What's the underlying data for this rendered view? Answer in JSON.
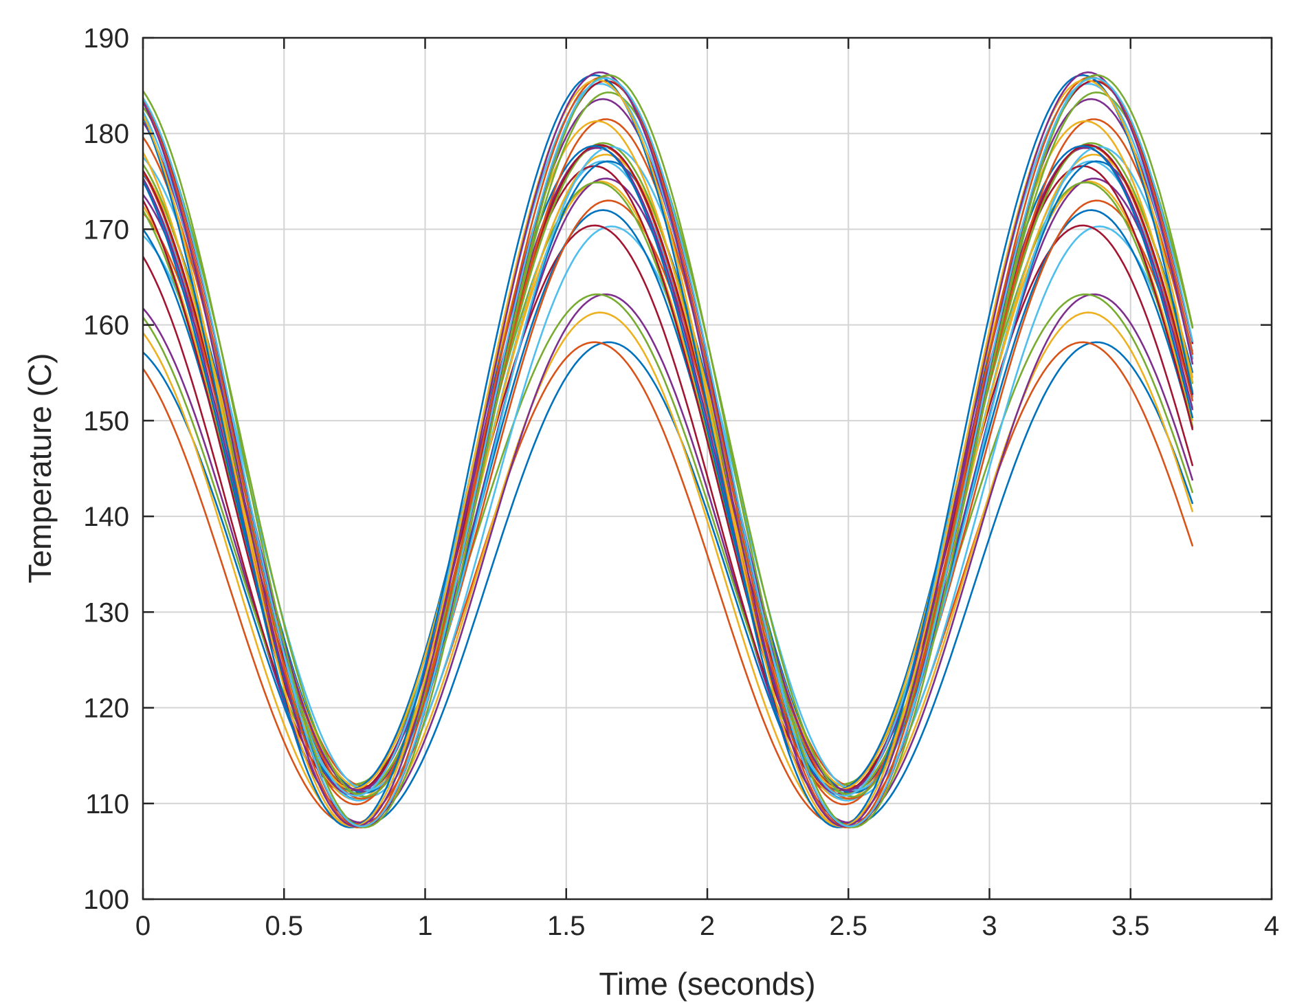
{
  "chart_data": {
    "type": "line",
    "xlabel": "Time (seconds)",
    "ylabel": "Temperature (C)",
    "xlim": [
      0,
      4
    ],
    "ylim": [
      100,
      190
    ],
    "xticks": [
      0,
      0.5,
      1,
      1.5,
      2,
      2.5,
      3,
      3.5,
      4
    ],
    "xtick_labels": [
      "0",
      "0.5",
      "1",
      "1.5",
      "2",
      "2.5",
      "3",
      "3.5",
      "4"
    ],
    "yticks": [
      100,
      110,
      120,
      130,
      140,
      150,
      160,
      170,
      180,
      190
    ],
    "ytick_labels": [
      "100",
      "110",
      "120",
      "130",
      "140",
      "150",
      "160",
      "170",
      "180",
      "190"
    ],
    "grid": true,
    "x_end": 3.72,
    "period": 1.73,
    "series_colors": [
      "#0072BD",
      "#D95319",
      "#EDB120",
      "#7E2F8E",
      "#77AC30",
      "#4DBEEE",
      "#A2142F"
    ],
    "series": [
      {
        "mean": 133.0,
        "amplitude": 25.2,
        "phase": 0.05
      },
      {
        "mean": 133.0,
        "amplitude": 25.2,
        "phase": 0.0
      },
      {
        "mean": 134.4,
        "amplitude": 26.9,
        "phase": 0.02
      },
      {
        "mean": 135.6,
        "amplitude": 27.6,
        "phase": 0.04
      },
      {
        "mean": 137.6,
        "amplitude": 25.6,
        "phase": 0.01
      },
      {
        "mean": 140.5,
        "amplitude": 29.8,
        "phase": 0.06
      },
      {
        "mean": 140.7,
        "amplitude": 29.7,
        "phase": 0.0
      },
      {
        "mean": 141.2,
        "amplitude": 30.8,
        "phase": 0.03
      },
      {
        "mean": 142.4,
        "amplitude": 30.6,
        "phase": 0.05
      },
      {
        "mean": 142.7,
        "amplitude": 32.3,
        "phase": 0.02
      },
      {
        "mean": 143.3,
        "amplitude": 32.0,
        "phase": 0.04
      },
      {
        "mean": 143.4,
        "amplitude": 31.5,
        "phase": 0.01
      },
      {
        "mean": 143.7,
        "amplitude": 33.4,
        "phase": 0.03
      },
      {
        "mean": 144.0,
        "amplitude": 32.6,
        "phase": 0.0
      },
      {
        "mean": 144.1,
        "amplitude": 33.0,
        "phase": 0.05
      },
      {
        "mean": 144.3,
        "amplitude": 34.4,
        "phase": 0.02
      },
      {
        "mean": 144.7,
        "amplitude": 33.1,
        "phase": 0.04
      },
      {
        "mean": 144.7,
        "amplitude": 33.8,
        "phase": 0.01
      },
      {
        "mean": 145.0,
        "amplitude": 34.0,
        "phase": 0.03
      },
      {
        "mean": 145.0,
        "amplitude": 33.6,
        "phase": 0.06
      },
      {
        "mean": 145.1,
        "amplitude": 33.7,
        "phase": 0.02
      },
      {
        "mean": 145.1,
        "amplitude": 33.6,
        "phase": 0.0
      },
      {
        "mean": 146.0,
        "amplitude": 35.5,
        "phase": 0.04
      },
      {
        "mean": 146.4,
        "amplitude": 34.9,
        "phase": 0.01
      },
      {
        "mean": 147.5,
        "amplitude": 36.1,
        "phase": 0.03
      },
      {
        "mean": 147.5,
        "amplitude": 36.8,
        "phase": 0.05
      },
      {
        "mean": 148.0,
        "amplitude": 37.2,
        "phase": 0.02
      },
      {
        "mean": 146.5,
        "amplitude": 39.0,
        "phase": 0.04
      },
      {
        "mean": 146.8,
        "amplitude": 39.3,
        "phase": 0.0
      },
      {
        "mean": 146.7,
        "amplitude": 39.2,
        "phase": 0.03
      },
      {
        "mean": 146.6,
        "amplitude": 39.0,
        "phase": 0.01
      },
      {
        "mean": 147.0,
        "amplitude": 39.4,
        "phase": 0.02
      },
      {
        "mean": 146.8,
        "amplitude": 39.3,
        "phase": 0.05
      },
      {
        "mean": 146.7,
        "amplitude": 39.1,
        "phase": 0.04
      }
    ]
  }
}
